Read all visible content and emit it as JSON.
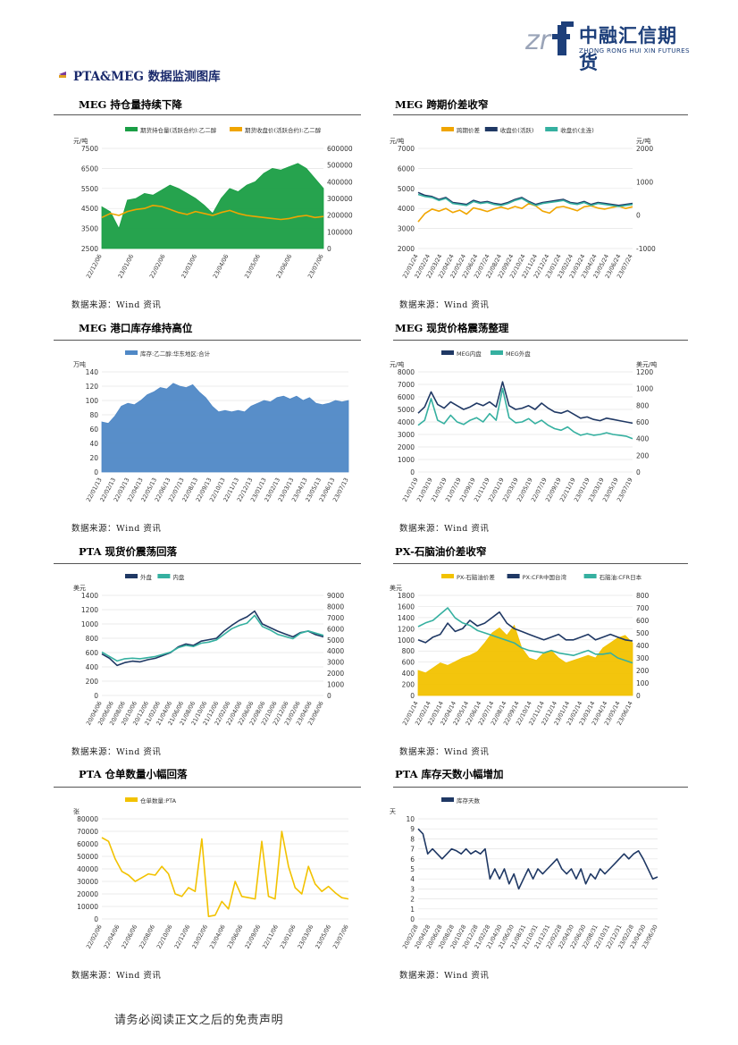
{
  "header": {
    "logo_cn": "中融汇信期货",
    "logo_en": "ZHONG RONG HUI XIN FUTURES",
    "logo_mark": "zrf"
  },
  "section_title": "PTA&MEG 数据监测图库",
  "source_text": "数据来源：Wind 资讯",
  "footer": "请务必阅读正文之后的免责声明",
  "panels": [
    {
      "caption": "MEG 持仓量持续下降"
    },
    {
      "caption": "MEG 跨期价差收窄"
    },
    {
      "caption": "MEG 港口库存维持高位"
    },
    {
      "caption": "MEG 现货价格震荡整理"
    },
    {
      "caption": "PTA 现货价震荡回落"
    },
    {
      "caption": "PX-石脑油价差收窄"
    },
    {
      "caption": "PTA 仓单数量小幅回落"
    },
    {
      "caption": "PTA 库存天数小幅增加"
    }
  ],
  "chart_data": [
    {
      "type": "area",
      "unit_left": "元/吨",
      "series": [
        {
          "name": "期货持仓量(活跃合约):乙二醇",
          "axis": "right",
          "color": "#1a9e45",
          "values": [
            250000,
            220000,
            120000,
            290000,
            300000,
            330000,
            320000,
            350000,
            380000,
            360000,
            330000,
            300000,
            260000,
            210000,
            300000,
            360000,
            340000,
            380000,
            400000,
            450000,
            480000,
            470000,
            490000,
            510000,
            480000,
            420000,
            360000
          ]
        },
        {
          "name": "期货收盘价(活跃合约):乙二醇",
          "axis": "left",
          "color": "#f0a500",
          "values": [
            4050,
            4250,
            4150,
            4350,
            4450,
            4500,
            4650,
            4600,
            4450,
            4300,
            4200,
            4350,
            4250,
            4150,
            4300,
            4400,
            4250,
            4150,
            4100,
            4050,
            4000,
            3950,
            4000,
            4100,
            4150,
            4050,
            4100
          ]
        }
      ],
      "x_labels": [
        "22/12/06",
        "23/01/06",
        "22/02/06",
        "23/03/06",
        "23/04/06",
        "23/05/06",
        "23/06/06",
        "23/07/06"
      ],
      "left_ticks": [
        "7500",
        "6500",
        "5500",
        "4500",
        "3500",
        "2500"
      ],
      "right_ticks": [
        "600000",
        "500000",
        "400000",
        "300000",
        "200000",
        "100000",
        "0"
      ],
      "ylim_left": [
        2500,
        7500
      ],
      "ylim_right": [
        0,
        600000
      ]
    },
    {
      "type": "line",
      "unit_left": "元/吨",
      "series": [
        {
          "name": "跨期价差",
          "axis": "right",
          "color": "#f0a500",
          "values": [
            -200,
            50,
            180,
            120,
            200,
            80,
            150,
            30,
            220,
            170,
            110,
            190,
            240,
            180,
            260,
            200,
            350,
            280,
            120,
            60,
            230,
            260,
            200,
            130,
            250,
            280,
            210,
            180,
            230,
            270,
            200,
            250
          ]
        },
        {
          "name": "收盘价(活跃)",
          "axis": "left",
          "color": "#1f3864",
          "values": [
            4800,
            4650,
            4600,
            4450,
            4550,
            4300,
            4250,
            4200,
            4400,
            4300,
            4350,
            4250,
            4200,
            4300,
            4450,
            4550,
            4350,
            4200,
            4300,
            4350,
            4400,
            4450,
            4300,
            4250,
            4350,
            4200,
            4300,
            4250,
            4200,
            4150,
            4200,
            4250
          ]
        },
        {
          "name": "收盘价(主连)",
          "axis": "left",
          "color": "#35b0a0",
          "values": [
            4700,
            4600,
            4550,
            4400,
            4500,
            4250,
            4200,
            4150,
            4350,
            4250,
            4300,
            4200,
            4150,
            4250,
            4400,
            4500,
            4300,
            4150,
            4250,
            4300,
            4350,
            4400,
            4250,
            4200,
            4300,
            4150,
            4250,
            4200,
            4150,
            4100,
            4150,
            4200
          ]
        }
      ],
      "x_labels": [
        "22/01/24",
        "22/02/24",
        "22/03/24",
        "22/04/24",
        "22/05/24",
        "22/06/24",
        "22/07/24",
        "22/08/24",
        "22/09/24",
        "22/10/24",
        "22/11/24",
        "22/12/24",
        "23/01/24",
        "23/02/24",
        "23/03/24",
        "23/04/24",
        "23/05/24",
        "23/06/24",
        "23/07/24"
      ],
      "left_ticks": [
        "7000",
        "6000",
        "5000",
        "4000",
        "3000",
        "2000"
      ],
      "right_ticks": [
        "2000",
        "1000",
        "0",
        "-1000"
      ],
      "ylim_left": [
        2000,
        7000
      ],
      "ylim_right": [
        -1000,
        2000
      ],
      "unit_right": "元/吨"
    },
    {
      "type": "area",
      "unit_left": "万吨",
      "series": [
        {
          "name": "库存:乙二醇:华东地区:合计",
          "axis": "left",
          "color": "#4f88c6",
          "values": [
            70,
            68,
            78,
            92,
            96,
            94,
            100,
            108,
            112,
            118,
            116,
            124,
            120,
            118,
            122,
            112,
            104,
            92,
            84,
            86,
            84,
            86,
            84,
            92,
            96,
            100,
            98,
            104,
            106,
            102,
            106,
            100,
            104,
            96,
            94,
            96,
            100,
            98,
            100
          ]
        }
      ],
      "x_labels": [
        "22/01/13",
        "22/02/13",
        "22/03/13",
        "22/04/13",
        "22/05/13",
        "22/06/13",
        "22/07/13",
        "22/08/13",
        "22/09/13",
        "22/10/13",
        "22/11/13",
        "22/12/13",
        "23/01/13",
        "23/02/13",
        "23/03/13",
        "23/04/13",
        "23/05/13",
        "23/06/13",
        "23/07/13"
      ],
      "left_ticks": [
        "140",
        "120",
        "100",
        "80",
        "60",
        "40",
        "20",
        "0"
      ],
      "ylim_left": [
        0,
        140
      ]
    },
    {
      "type": "line",
      "unit_left": "元/吨",
      "unit_right": "美元/吨",
      "series": [
        {
          "name": "MEG内盘",
          "axis": "left",
          "color": "#1f3864",
          "values": [
            4700,
            5200,
            6400,
            5400,
            5100,
            5600,
            5300,
            5000,
            5200,
            5500,
            5300,
            5600,
            5200,
            7200,
            5300,
            5000,
            5100,
            5300,
            5000,
            5500,
            5100,
            4800,
            4700,
            4900,
            4600,
            4300,
            4400,
            4200,
            4100,
            4300,
            4200,
            4100,
            4000,
            3900
          ]
        },
        {
          "name": "MEG外盘",
          "axis": "right",
          "color": "#35b0a0",
          "values": [
            560,
            620,
            880,
            620,
            580,
            680,
            600,
            570,
            620,
            650,
            600,
            700,
            620,
            1000,
            650,
            590,
            600,
            640,
            580,
            620,
            560,
            520,
            500,
            540,
            480,
            440,
            460,
            440,
            450,
            470,
            450,
            440,
            430,
            400
          ]
        }
      ],
      "x_labels": [
        "21/01/19",
        "21/03/19",
        "21/05/19",
        "21/07/19",
        "21/09/19",
        "21/11/19",
        "22/01/19",
        "22/03/19",
        "22/05/19",
        "22/07/19",
        "22/09/19",
        "22/11/19",
        "23/01/19",
        "23/03/19",
        "23/05/19",
        "23/07/19"
      ],
      "left_ticks": [
        "8000",
        "7000",
        "6000",
        "5000",
        "4000",
        "3000",
        "2000",
        "1000",
        "0"
      ],
      "right_ticks": [
        "1200",
        "1000",
        "800",
        "600",
        "400",
        "200",
        "0"
      ],
      "ylim_left": [
        0,
        8000
      ],
      "ylim_right": [
        0,
        1200
      ]
    },
    {
      "type": "line",
      "unit_left": "美元",
      "series": [
        {
          "name": "外盘",
          "axis": "left",
          "color": "#1f3864",
          "values": [
            580,
            520,
            420,
            460,
            480,
            470,
            500,
            520,
            560,
            600,
            680,
            720,
            700,
            760,
            780,
            800,
            900,
            980,
            1050,
            1100,
            1180,
            1000,
            950,
            900,
            860,
            820,
            880,
            900,
            850,
            820
          ]
        },
        {
          "name": "内盘",
          "axis": "right",
          "color": "#35b0a0",
          "values": [
            3900,
            3500,
            3100,
            3300,
            3350,
            3300,
            3400,
            3500,
            3700,
            3900,
            4300,
            4500,
            4400,
            4700,
            4800,
            5000,
            5500,
            6000,
            6300,
            6500,
            7200,
            6200,
            5900,
            5500,
            5300,
            5100,
            5600,
            5800,
            5600,
            5400
          ]
        }
      ],
      "x_labels": [
        "20/04/06",
        "20/06/06",
        "20/08/06",
        "20/10/06",
        "20/12/06",
        "21/02/06",
        "21/04/06",
        "21/06/06",
        "21/08/06",
        "21/10/06",
        "21/12/06",
        "22/02/06",
        "22/04/06",
        "22/06/06",
        "22/08/06",
        "22/10/06",
        "22/12/06",
        "23/02/06",
        "23/04/06",
        "23/06/06"
      ],
      "left_ticks": [
        "1400",
        "1200",
        "1000",
        "800",
        "600",
        "400",
        "200",
        "0"
      ],
      "right_ticks": [
        "9000",
        "8000",
        "7000",
        "6000",
        "5000",
        "4000",
        "3000",
        "2000",
        "1000",
        "0"
      ],
      "ylim_left": [
        0,
        1400
      ],
      "ylim_right": [
        0,
        9000
      ]
    },
    {
      "type": "area",
      "unit_left": "美元",
      "series": [
        {
          "name": "PX-石脑油价差",
          "axis": "right",
          "color": "#f2c200",
          "values": [
            200,
            180,
            220,
            260,
            240,
            270,
            300,
            320,
            350,
            420,
            500,
            540,
            480,
            560,
            380,
            300,
            280,
            340,
            360,
            300,
            260,
            280,
            300,
            320,
            300,
            380,
            420,
            460,
            480,
            420
          ]
        },
        {
          "name": "PX:CFR中国台湾",
          "axis": "left",
          "color": "#1f3864",
          "values": [
            1000,
            950,
            1050,
            1100,
            1300,
            1150,
            1200,
            1350,
            1250,
            1300,
            1400,
            1500,
            1300,
            1200,
            1150,
            1100,
            1050,
            1000,
            1050,
            1100,
            1000,
            1000,
            1050,
            1100,
            1000,
            1050,
            1100,
            1050,
            1000,
            980
          ]
        },
        {
          "name": "石脑油:CFR日本",
          "axis": "right",
          "color": "#35b0a0",
          "values": [
            550,
            580,
            600,
            650,
            700,
            620,
            580,
            560,
            520,
            500,
            480,
            460,
            440,
            420,
            380,
            360,
            350,
            340,
            360,
            340,
            330,
            320,
            340,
            360,
            330,
            330,
            340,
            300,
            280,
            260
          ]
        }
      ],
      "x_labels": [
        "22/01/14",
        "22/02/14",
        "22/03/14",
        "22/04/14",
        "22/05/14",
        "22/06/14",
        "22/07/14",
        "22/08/14",
        "22/09/14",
        "22/10/14",
        "22/11/14",
        "22/12/14",
        "23/01/14",
        "23/02/14",
        "23/03/14",
        "23/04/14",
        "23/05/14",
        "23/06/14"
      ],
      "left_ticks": [
        "1800",
        "1600",
        "1400",
        "1200",
        "1000",
        "800",
        "600",
        "400",
        "200",
        "0"
      ],
      "right_ticks": [
        "800",
        "700",
        "600",
        "500",
        "400",
        "300",
        "200",
        "100",
        "0"
      ],
      "ylim_left": [
        0,
        1800
      ],
      "ylim_right": [
        0,
        800
      ]
    },
    {
      "type": "line",
      "unit_left": "张",
      "series": [
        {
          "name": "仓单数量:PTA",
          "axis": "left",
          "color": "#f2c200",
          "values": [
            65000,
            62000,
            48000,
            38000,
            35000,
            30000,
            33000,
            36000,
            35000,
            42000,
            36000,
            20000,
            18000,
            25000,
            22000,
            64000,
            2000,
            3000,
            14000,
            8000,
            30000,
            18000,
            17000,
            16000,
            62000,
            18000,
            16000,
            70000,
            42000,
            25000,
            20000,
            42000,
            28000,
            22000,
            26000,
            21000,
            17000,
            16000
          ]
        }
      ],
      "x_labels": [
        "22/02/06",
        "22/04/06",
        "22/06/06",
        "22/08/06",
        "22/10/06",
        "22/12/06",
        "23/02/06",
        "23/04/06",
        "23/06/06",
        "22/09/06",
        "22/11/06",
        "23/01/06",
        "23/03/06",
        "23/05/06",
        "23/07/06"
      ],
      "left_ticks": [
        "80000",
        "70000",
        "60000",
        "50000",
        "40000",
        "30000",
        "20000",
        "10000",
        "0"
      ],
      "ylim_left": [
        0,
        80000
      ]
    },
    {
      "type": "line",
      "unit_left": "天",
      "series": [
        {
          "name": "库存天数",
          "axis": "left",
          "color": "#1f3864",
          "values": [
            9,
            8.5,
            6.5,
            7,
            6.5,
            6,
            6.5,
            7,
            6.8,
            6.5,
            7,
            6.5,
            6.8,
            6.5,
            7,
            4,
            5,
            4,
            5,
            3.5,
            4.5,
            3,
            4,
            5,
            4,
            5,
            4.5,
            5,
            5.5,
            6,
            5,
            4.5,
            5,
            4,
            5,
            3.5,
            4.5,
            4,
            5,
            4.5,
            5,
            5.5,
            6,
            6.5,
            6,
            6.5,
            6.8,
            6,
            5,
            4,
            4.2
          ]
        }
      ],
      "x_labels": [
        "20/02/28",
        "20/04/28",
        "20/06/28",
        "20/08/28",
        "20/10/28",
        "20/12/28",
        "21/02/28",
        "21/04/30",
        "21/06/30",
        "21/08/31",
        "21/10/31",
        "21/12/31",
        "22/02/28",
        "22/04/30",
        "22/06/30",
        "22/08/31",
        "22/10/31",
        "22/12/31",
        "23/02/28",
        "23/04/30",
        "23/06/30"
      ],
      "left_ticks": [
        "10",
        "9",
        "8",
        "7",
        "6",
        "5",
        "4",
        "3",
        "2",
        "1",
        "0"
      ],
      "ylim_left": [
        0,
        10
      ]
    }
  ]
}
